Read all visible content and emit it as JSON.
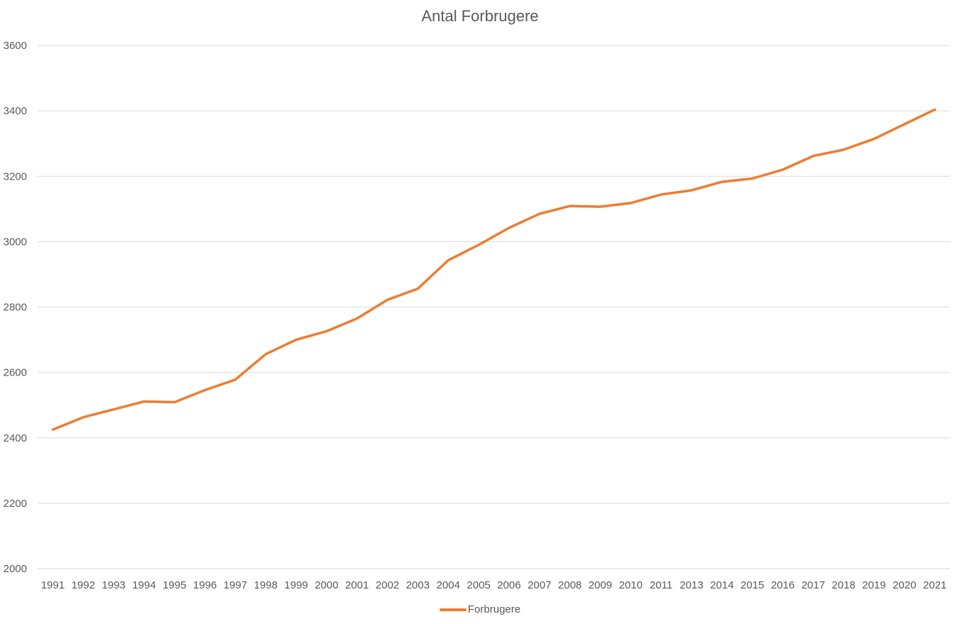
{
  "chart_data": {
    "type": "line",
    "title": "Antal Forbrugere",
    "xlabel": "",
    "ylabel": "",
    "ylim": [
      2000,
      3600
    ],
    "yticks": [
      "2000",
      "2200",
      "2400",
      "2600",
      "2800",
      "3000",
      "3200",
      "3400",
      "3600"
    ],
    "grid": true,
    "legend_position": "bottom",
    "categories": [
      "1991",
      "1992",
      "1993",
      "1994",
      "1995",
      "1996",
      "1997",
      "1998",
      "1999",
      "2000",
      "2001",
      "2002",
      "2003",
      "2004",
      "2005",
      "2006",
      "2007",
      "2008",
      "2009",
      "2010",
      "2011",
      "2013",
      "2014",
      "2015",
      "2016",
      "2017",
      "2018",
      "2019",
      "2020",
      "2021"
    ],
    "series": [
      {
        "name": "Forbrugere",
        "color": "#ED7D31",
        "values": [
          2425,
          2463,
          2487,
          2511,
          2509,
          2546,
          2578,
          2656,
          2700,
          2726,
          2765,
          2822,
          2856,
          2943,
          2990,
          3042,
          3085,
          3109,
          3107,
          3118,
          3144,
          3157,
          3183,
          3193,
          3220,
          3262,
          3281,
          3314,
          3359,
          3404
        ]
      }
    ]
  }
}
